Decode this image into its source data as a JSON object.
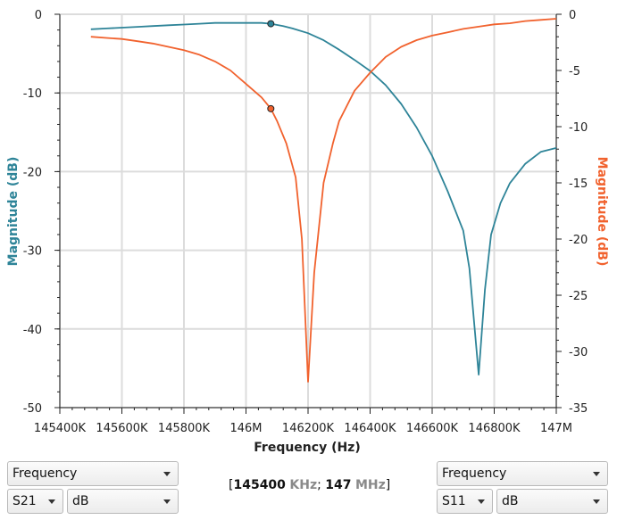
{
  "chart_data": {
    "type": "line",
    "xlabel": "Frequency (Hz)",
    "ylabel_left": "Magnitude (dB)",
    "ylabel_right": "Magnitude (dB)",
    "xlim": [
      145400000,
      147000000
    ],
    "ylim_left": [
      -50,
      0
    ],
    "ylim_right": [
      -35,
      0
    ],
    "x_ticks": [
      {
        "value": 145400000,
        "label": "145400K"
      },
      {
        "value": 145600000,
        "label": "145600K"
      },
      {
        "value": 145800000,
        "label": "145800K"
      },
      {
        "value": 146000000,
        "label": "146M"
      },
      {
        "value": 146200000,
        "label": "146200K"
      },
      {
        "value": 146400000,
        "label": "146400K"
      },
      {
        "value": 146600000,
        "label": "146600K"
      },
      {
        "value": 146800000,
        "label": "146800K"
      },
      {
        "value": 147000000,
        "label": "147M"
      }
    ],
    "y_ticks_left": [
      "0",
      "-10",
      "-20",
      "-30",
      "-40",
      "-50"
    ],
    "y_ticks_right": [
      "0",
      "-5",
      "-10",
      "-15",
      "-20",
      "-25",
      "-30",
      "-35"
    ],
    "grid": true,
    "series": [
      {
        "color": "#2e8498",
        "axis": "left",
        "x": [
          145500000,
          145550000,
          145600000,
          145650000,
          145700000,
          145750000,
          145800000,
          145850000,
          145900000,
          145950000,
          146000000,
          146050000,
          146080000,
          146120000,
          146150000,
          146200000,
          146250000,
          146300000,
          146350000,
          146400000,
          146450000,
          146500000,
          146550000,
          146600000,
          146650000,
          146700000,
          146720000,
          146750000,
          146770000,
          146790000,
          146820000,
          146850000,
          146900000,
          146950000,
          147000000
        ],
        "y": [
          -1.9,
          -1.8,
          -1.7,
          -1.6,
          -1.5,
          -1.4,
          -1.3,
          -1.2,
          -1.1,
          -1.1,
          -1.1,
          -1.1,
          -1.2,
          -1.5,
          -1.8,
          -2.4,
          -3.3,
          -4.5,
          -5.8,
          -7.2,
          -9.0,
          -11.4,
          -14.4,
          -18.0,
          -22.5,
          -27.5,
          -32.3,
          -45.8,
          -35.0,
          -28.0,
          -24.0,
          -21.5,
          -19.0,
          -17.5,
          -17.0
        ],
        "marker": {
          "x": 146080000,
          "y": -1.2
        }
      },
      {
        "color": "#f1622e",
        "axis": "right",
        "x": [
          145500000,
          145550000,
          145600000,
          145650000,
          145700000,
          145750000,
          145800000,
          145850000,
          145900000,
          145950000,
          146000000,
          146050000,
          146080000,
          146100000,
          146130000,
          146160000,
          146180000,
          146200000,
          146220000,
          146250000,
          146280000,
          146300000,
          146350000,
          146400000,
          146450000,
          146500000,
          146550000,
          146600000,
          146650000,
          146700000,
          146750000,
          146800000,
          146850000,
          146900000,
          146950000,
          147000000
        ],
        "y": [
          -2.0,
          -2.1,
          -2.2,
          -2.4,
          -2.6,
          -2.9,
          -3.2,
          -3.6,
          -4.2,
          -5.0,
          -6.2,
          -7.4,
          -8.4,
          -9.5,
          -11.5,
          -14.5,
          -20.0,
          -32.7,
          -23.0,
          -15.0,
          -11.5,
          -9.5,
          -6.8,
          -5.2,
          -3.8,
          -2.9,
          -2.3,
          -1.9,
          -1.6,
          -1.3,
          -1.1,
          -0.9,
          -0.8,
          -0.6,
          -0.5,
          -0.4
        ],
        "marker": {
          "x": 146080000,
          "y": -8.4
        }
      }
    ]
  },
  "controls": {
    "left": {
      "mode": "Frequency",
      "param": "S21",
      "format": "dB"
    },
    "right": {
      "mode": "Frequency",
      "param": "S11",
      "format": "dB"
    },
    "range": {
      "open": "[",
      "start": "145400",
      "start_unit": "KHz",
      "sep": ";",
      "stop": "147",
      "stop_unit": "MHz",
      "close": "]"
    }
  },
  "colors": {
    "s21": "#2e8498",
    "s11": "#f1622e",
    "grid": "#dcdcdc"
  }
}
